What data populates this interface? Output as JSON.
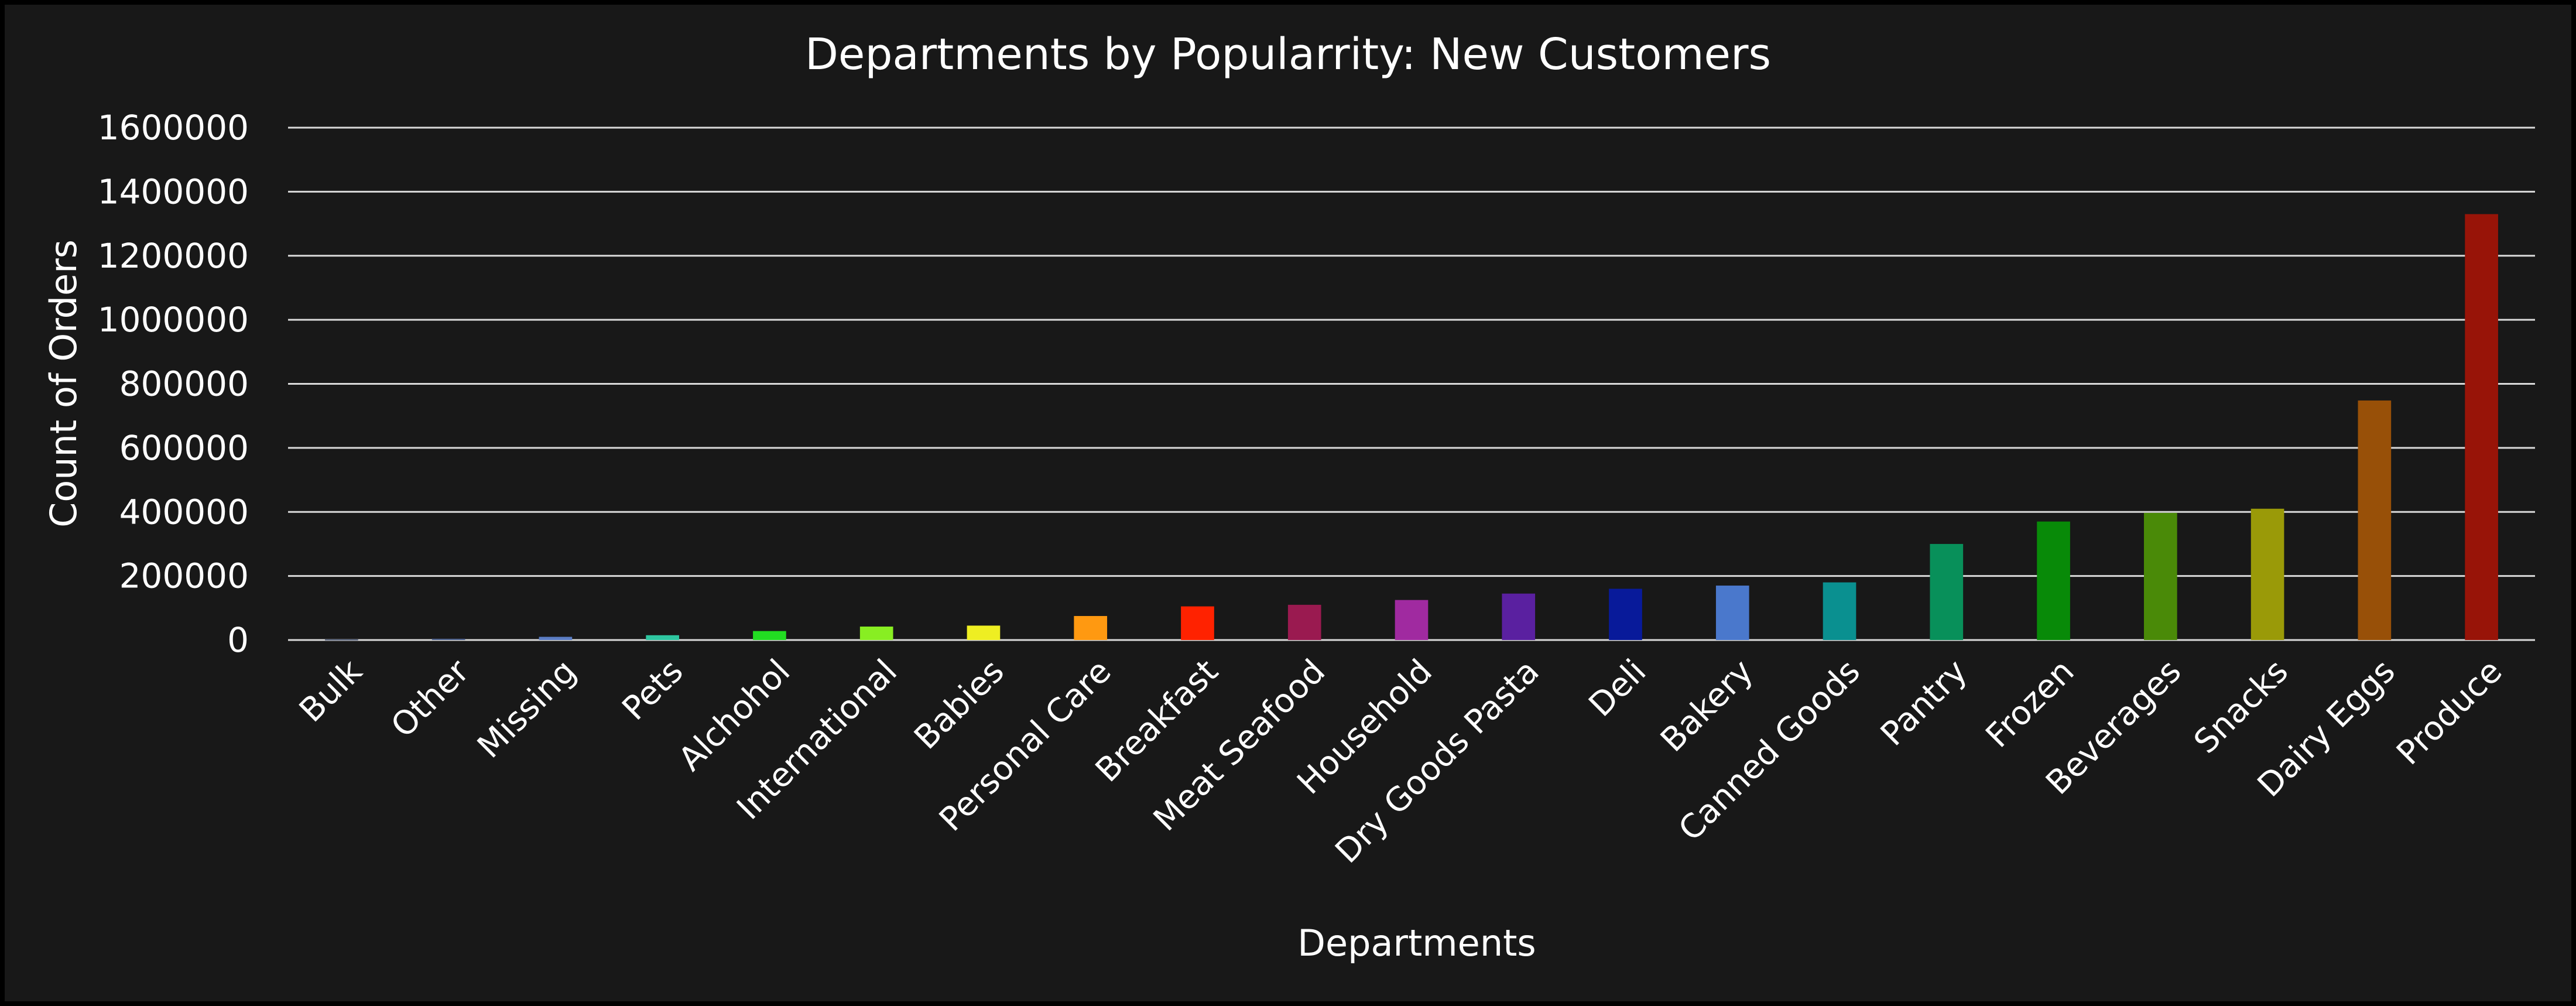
{
  "chart_data": {
    "type": "bar",
    "title": "Departments by Popularrity: New Customers",
    "xlabel": "Departments",
    "ylabel": "Count of Orders",
    "ylim": [
      0,
      1600000
    ],
    "yticks": [
      0,
      200000,
      400000,
      600000,
      800000,
      1000000,
      1200000,
      1400000,
      1600000
    ],
    "grid": true,
    "categories": [
      "Bulk",
      "Other",
      "Missing",
      "Pets",
      "Alchohol",
      "International",
      "Babies",
      "Personal Care",
      "Breakfast",
      "Meat Seafood",
      "Household",
      "Dry Goods Pasta",
      "Deli",
      "Bakery",
      "Canned Goods",
      "Pantry",
      "Frozen",
      "Beverages",
      "Snacks",
      "Dairy Eggs",
      "Produce"
    ],
    "values": [
      2000,
      4000,
      10000,
      15000,
      28000,
      42000,
      45000,
      75000,
      105000,
      110000,
      125000,
      145000,
      160000,
      170000,
      180000,
      300000,
      370000,
      397000,
      410000,
      748000,
      1330000
    ],
    "colors": [
      "#3a4a6a",
      "#4a5f8a",
      "#5b7dc4",
      "#2ec6a0",
      "#22dd22",
      "#88ee22",
      "#eeee22",
      "#ff9911",
      "#ff2200",
      "#9a1a50",
      "#a02aa0",
      "#5a20a0",
      "#081a9a",
      "#4a78cc",
      "#0a9090",
      "#08905a",
      "#088a08",
      "#4a8a08",
      "#9a9a08",
      "#985008",
      "#981408"
    ]
  }
}
